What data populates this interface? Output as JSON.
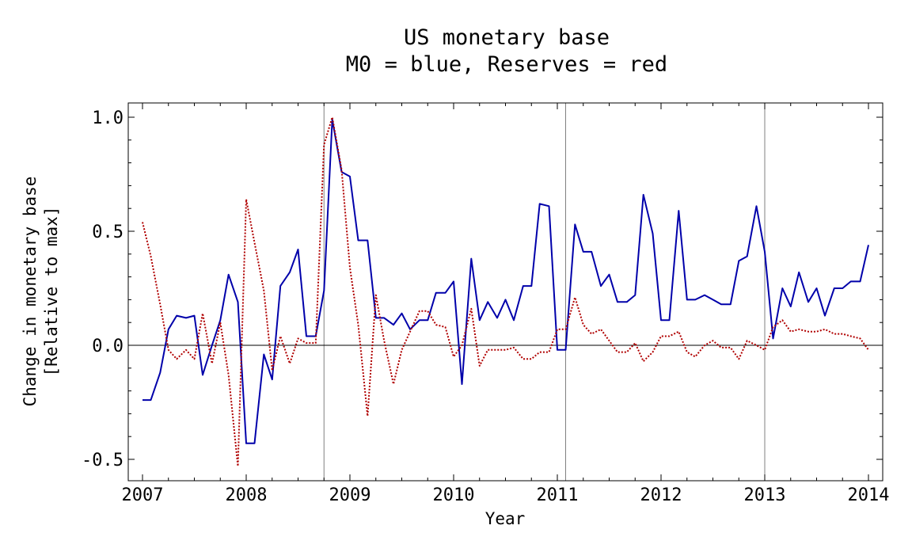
{
  "chart_data": {
    "type": "line",
    "title": "US monetary base",
    "subtitle": "M0 = blue, Reserves = red",
    "xlabel": "Year",
    "ylabel": "Change in monetary base",
    "ylabel2": "[Relative to max]",
    "xlim": [
      2007.0,
      2014.15
    ],
    "ylim": [
      -0.6,
      1.05
    ],
    "x_ticks": [
      2007,
      2008,
      2009,
      2010,
      2011,
      2012,
      2013,
      2014
    ],
    "x_tick_labels": [
      "2007",
      "2008",
      "2009",
      "2010",
      "2011",
      "2012",
      "2013",
      "2014"
    ],
    "y_ticks": [
      -0.5,
      0.0,
      0.5,
      1.0
    ],
    "y_tick_labels": [
      "-0.5",
      "0.0",
      "0.5",
      "1.0"
    ],
    "vertical_lines": [
      2008.75,
      2011.08,
      2013.0
    ],
    "zero_line": 0.0,
    "grid": false,
    "legend": "none",
    "series": [
      {
        "color": "#0000aa",
        "style": "solid",
        "points": [
          [
            2007.0,
            -0.24
          ],
          [
            2007.08,
            -0.24
          ],
          [
            2007.17,
            -0.12
          ],
          [
            2007.25,
            0.07
          ],
          [
            2007.33,
            0.13
          ],
          [
            2007.42,
            0.12
          ],
          [
            2007.5,
            0.13
          ],
          [
            2007.58,
            -0.13
          ],
          [
            2007.67,
            0.0
          ],
          [
            2007.75,
            0.11
          ],
          [
            2007.83,
            0.31
          ],
          [
            2007.92,
            0.19
          ],
          [
            2008.0,
            -0.43
          ],
          [
            2008.08,
            -0.43
          ],
          [
            2008.17,
            -0.04
          ],
          [
            2008.25,
            -0.15
          ],
          [
            2008.33,
            0.26
          ],
          [
            2008.42,
            0.32
          ],
          [
            2008.5,
            0.42
          ],
          [
            2008.58,
            0.04
          ],
          [
            2008.67,
            0.04
          ],
          [
            2008.75,
            0.24
          ],
          [
            2008.83,
            0.99
          ],
          [
            2008.92,
            0.76
          ],
          [
            2009.0,
            0.74
          ],
          [
            2009.08,
            0.46
          ],
          [
            2009.17,
            0.46
          ],
          [
            2009.25,
            0.12
          ],
          [
            2009.33,
            0.12
          ],
          [
            2009.42,
            0.09
          ],
          [
            2009.5,
            0.14
          ],
          [
            2009.58,
            0.07
          ],
          [
            2009.67,
            0.11
          ],
          [
            2009.75,
            0.11
          ],
          [
            2009.83,
            0.23
          ],
          [
            2009.92,
            0.23
          ],
          [
            2010.0,
            0.28
          ],
          [
            2010.08,
            -0.17
          ],
          [
            2010.17,
            0.38
          ],
          [
            2010.25,
            0.11
          ],
          [
            2010.33,
            0.19
          ],
          [
            2010.42,
            0.12
          ],
          [
            2010.5,
            0.2
          ],
          [
            2010.58,
            0.11
          ],
          [
            2010.67,
            0.26
          ],
          [
            2010.75,
            0.26
          ],
          [
            2010.83,
            0.62
          ],
          [
            2010.92,
            0.61
          ],
          [
            2011.0,
            -0.02
          ],
          [
            2011.08,
            -0.02
          ],
          [
            2011.17,
            0.53
          ],
          [
            2011.25,
            0.41
          ],
          [
            2011.33,
            0.41
          ],
          [
            2011.42,
            0.26
          ],
          [
            2011.5,
            0.31
          ],
          [
            2011.58,
            0.19
          ],
          [
            2011.67,
            0.19
          ],
          [
            2011.75,
            0.22
          ],
          [
            2011.83,
            0.66
          ],
          [
            2011.92,
            0.49
          ],
          [
            2012.0,
            0.11
          ],
          [
            2012.08,
            0.11
          ],
          [
            2012.17,
            0.59
          ],
          [
            2012.25,
            0.2
          ],
          [
            2012.33,
            0.2
          ],
          [
            2012.42,
            0.22
          ],
          [
            2012.5,
            0.2
          ],
          [
            2012.58,
            0.18
          ],
          [
            2012.67,
            0.18
          ],
          [
            2012.75,
            0.37
          ],
          [
            2012.83,
            0.39
          ],
          [
            2012.92,
            0.61
          ],
          [
            2013.0,
            0.41
          ],
          [
            2013.08,
            0.03
          ],
          [
            2013.17,
            0.25
          ],
          [
            2013.25,
            0.17
          ],
          [
            2013.33,
            0.32
          ],
          [
            2013.42,
            0.19
          ],
          [
            2013.5,
            0.25
          ],
          [
            2013.58,
            0.13
          ],
          [
            2013.67,
            0.25
          ],
          [
            2013.75,
            0.25
          ],
          [
            2013.83,
            0.28
          ],
          [
            2013.92,
            0.28
          ],
          [
            2014.0,
            0.44
          ]
        ]
      },
      {
        "color": "#b00000",
        "style": "dotted",
        "points": [
          [
            2007.0,
            0.54
          ],
          [
            2007.08,
            0.39
          ],
          [
            2007.17,
            0.18
          ],
          [
            2007.25,
            -0.02
          ],
          [
            2007.33,
            -0.06
          ],
          [
            2007.42,
            -0.02
          ],
          [
            2007.5,
            -0.06
          ],
          [
            2007.58,
            0.14
          ],
          [
            2007.67,
            -0.08
          ],
          [
            2007.75,
            0.1
          ],
          [
            2007.83,
            -0.13
          ],
          [
            2007.92,
            -0.53
          ],
          [
            2008.0,
            0.64
          ],
          [
            2008.08,
            0.45
          ],
          [
            2008.17,
            0.24
          ],
          [
            2008.25,
            -0.11
          ],
          [
            2008.33,
            0.04
          ],
          [
            2008.42,
            -0.08
          ],
          [
            2008.5,
            0.03
          ],
          [
            2008.58,
            0.01
          ],
          [
            2008.67,
            0.01
          ],
          [
            2008.75,
            0.88
          ],
          [
            2008.83,
            1.0
          ],
          [
            2008.92,
            0.77
          ],
          [
            2009.0,
            0.34
          ],
          [
            2009.08,
            0.09
          ],
          [
            2009.17,
            -0.31
          ],
          [
            2009.25,
            0.22
          ],
          [
            2009.33,
            0.02
          ],
          [
            2009.42,
            -0.17
          ],
          [
            2009.5,
            -0.02
          ],
          [
            2009.58,
            0.06
          ],
          [
            2009.67,
            0.15
          ],
          [
            2009.75,
            0.15
          ],
          [
            2009.83,
            0.09
          ],
          [
            2009.92,
            0.08
          ],
          [
            2010.0,
            -0.05
          ],
          [
            2010.08,
            0.0
          ],
          [
            2010.17,
            0.16
          ],
          [
            2010.25,
            -0.09
          ],
          [
            2010.33,
            -0.02
          ],
          [
            2010.42,
            -0.02
          ],
          [
            2010.5,
            -0.02
          ],
          [
            2010.58,
            -0.01
          ],
          [
            2010.67,
            -0.06
          ],
          [
            2010.75,
            -0.06
          ],
          [
            2010.83,
            -0.03
          ],
          [
            2010.92,
            -0.03
          ],
          [
            2011.0,
            0.07
          ],
          [
            2011.08,
            0.07
          ],
          [
            2011.17,
            0.21
          ],
          [
            2011.25,
            0.09
          ],
          [
            2011.33,
            0.05
          ],
          [
            2011.42,
            0.07
          ],
          [
            2011.5,
            0.02
          ],
          [
            2011.58,
            -0.03
          ],
          [
            2011.67,
            -0.03
          ],
          [
            2011.75,
            0.01
          ],
          [
            2011.83,
            -0.07
          ],
          [
            2011.92,
            -0.03
          ],
          [
            2012.0,
            0.04
          ],
          [
            2012.08,
            0.04
          ],
          [
            2012.17,
            0.06
          ],
          [
            2012.25,
            -0.03
          ],
          [
            2012.33,
            -0.05
          ],
          [
            2012.42,
            0.0
          ],
          [
            2012.5,
            0.02
          ],
          [
            2012.58,
            -0.01
          ],
          [
            2012.67,
            -0.01
          ],
          [
            2012.75,
            -0.06
          ],
          [
            2012.83,
            0.02
          ],
          [
            2012.92,
            0.0
          ],
          [
            2013.0,
            -0.02
          ],
          [
            2013.08,
            0.08
          ],
          [
            2013.17,
            0.11
          ],
          [
            2013.25,
            0.06
          ],
          [
            2013.33,
            0.07
          ],
          [
            2013.42,
            0.06
          ],
          [
            2013.5,
            0.06
          ],
          [
            2013.58,
            0.07
          ],
          [
            2013.67,
            0.05
          ],
          [
            2013.75,
            0.05
          ],
          [
            2013.83,
            0.04
          ],
          [
            2013.92,
            0.03
          ],
          [
            2014.0,
            -0.02
          ]
        ]
      }
    ]
  }
}
